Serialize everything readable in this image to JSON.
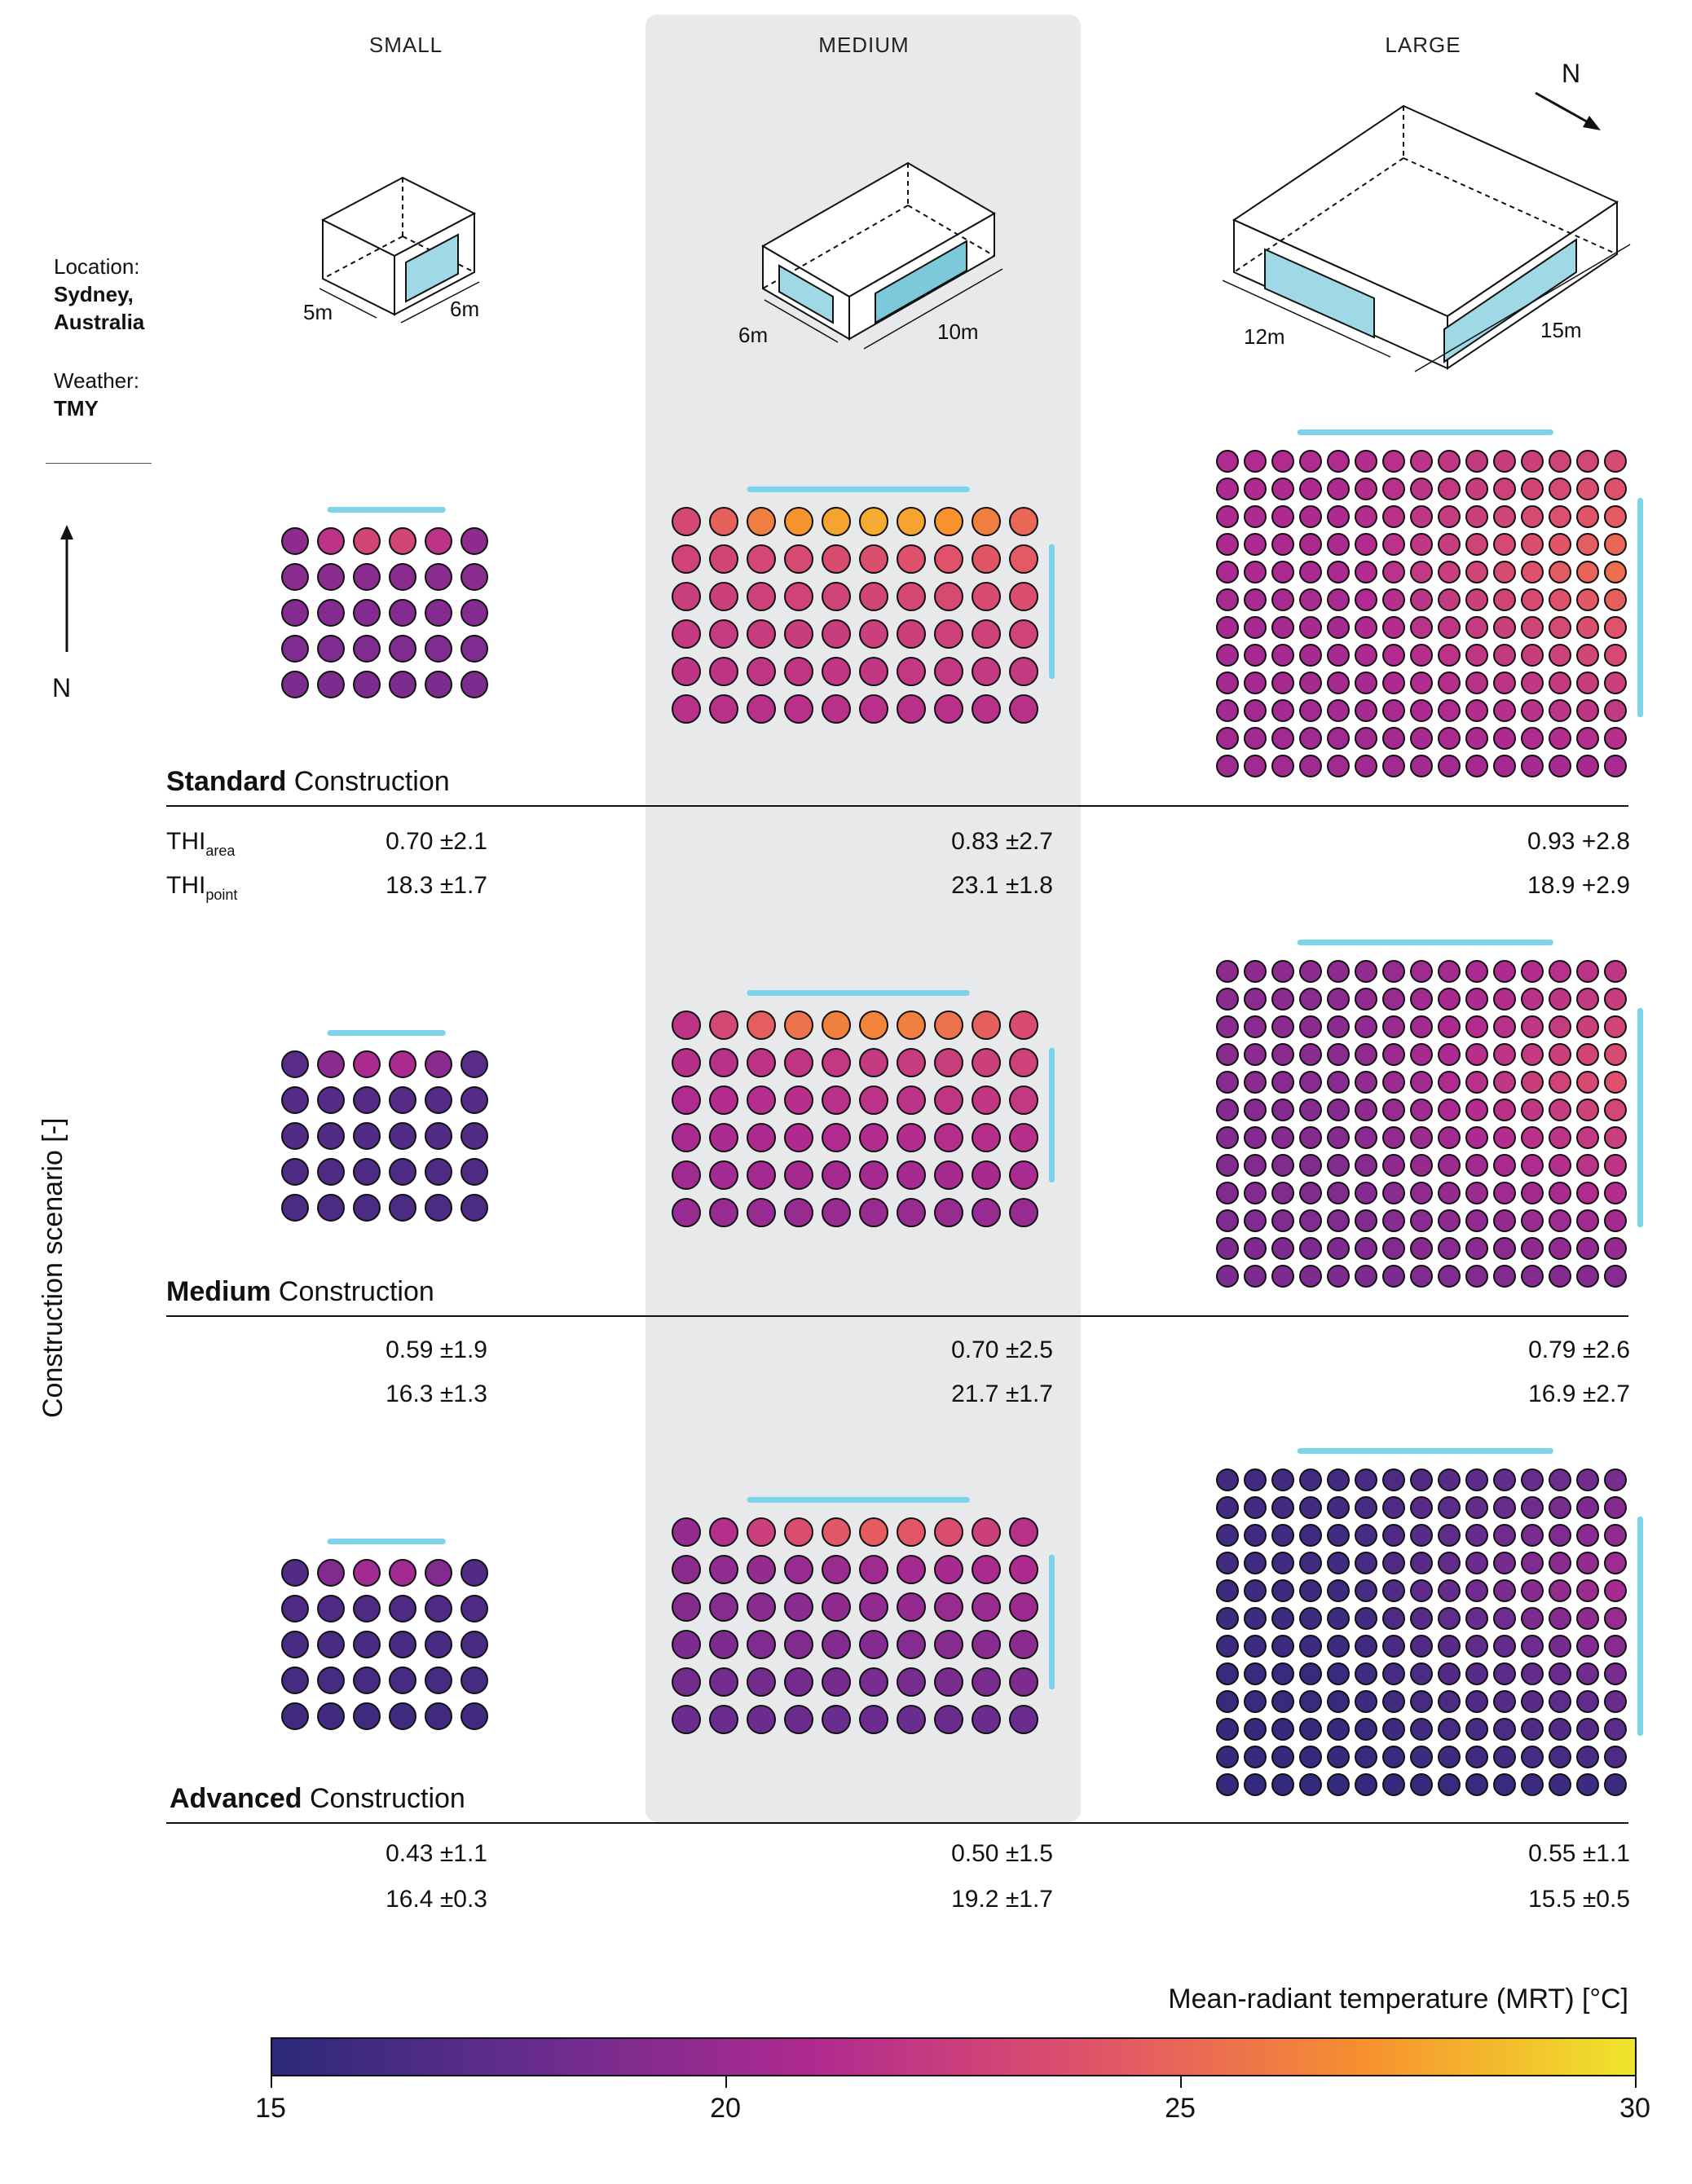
{
  "columns": [
    "SMALL",
    "MEDIUM",
    "LARGE"
  ],
  "location": {
    "label": "Location:",
    "value_line1": "Sydney,",
    "value_line2": "Australia"
  },
  "weather": {
    "label": "Weather:",
    "value": "TMY"
  },
  "north_label": "N",
  "dims": {
    "small": [
      "5m",
      "6m"
    ],
    "medium": [
      "6m",
      "10m"
    ],
    "large": [
      "12m",
      "15m"
    ]
  },
  "y_axis_label": "Construction scenario [-]",
  "metric_labels": {
    "area_main": "THI",
    "area_sub": "area",
    "point_main": "THI",
    "point_sub": "point"
  },
  "scenarios": [
    {
      "bold": "Standard",
      "rest": " Construction",
      "thi_area": [
        "0.70 ±2.1",
        "0.83 ±2.7",
        "0.93 +2.8"
      ],
      "thi_point": [
        "18.3 ±1.7",
        "23.1 ±1.8",
        "18.9 +2.9"
      ]
    },
    {
      "bold": "Medium",
      "rest": " Construction",
      "thi_area": [
        "0.59 ±1.9",
        "0.70 ±2.5",
        "0.79 ±2.6"
      ],
      "thi_point": [
        "16.3 ±1.3",
        "21.7 ±1.7",
        "16.9 ±2.7"
      ]
    },
    {
      "bold": "Advanced",
      "rest": " Construction",
      "thi_area": [
        "0.43 ±1.1",
        "0.50 ±1.5",
        "0.55 ±1.1"
      ],
      "thi_point": [
        "16.4 ±0.3",
        "19.2 ±1.7",
        "15.5 ±0.5"
      ]
    }
  ],
  "colorbar": {
    "title": "Mean-radiant temperature (MRT) [°C]",
    "min": 15,
    "max": 30,
    "ticks": [
      "15",
      "20",
      "25",
      "30"
    ],
    "stops": [
      "#2b2a7a",
      "#6a2c8e",
      "#b12a90",
      "#e0526a",
      "#f7902f",
      "#efe52c"
    ]
  },
  "colors": {
    "window": "#7dd3ea",
    "shade": "#e8e9eb"
  }
}
